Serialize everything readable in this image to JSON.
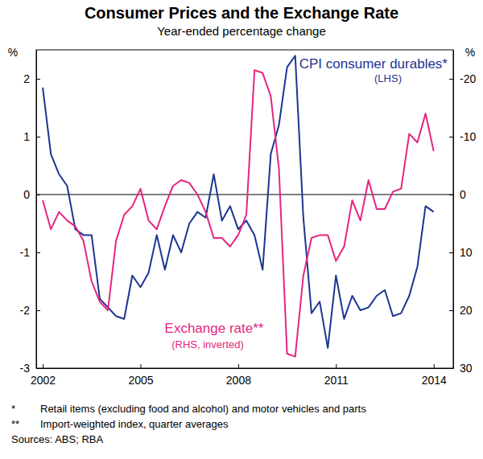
{
  "chart_data": {
    "type": "line",
    "title": "Consumer Prices and the Exchange Rate",
    "subtitle": "Year-ended percentage change",
    "ylabel": "%",
    "y2label": "%",
    "x": [
      2002,
      2002.25,
      2002.5,
      2002.75,
      2003,
      2003.25,
      2003.5,
      2003.75,
      2004,
      2004.25,
      2004.5,
      2004.75,
      2005,
      2005.25,
      2005.5,
      2005.75,
      2006,
      2006.25,
      2006.5,
      2006.75,
      2007,
      2007.25,
      2007.5,
      2007.75,
      2008,
      2008.25,
      2008.5,
      2008.75,
      2009,
      2009.25,
      2009.5,
      2009.75,
      2010,
      2010.25,
      2010.5,
      2010.75,
      2011,
      2011.25,
      2011.5,
      2011.75,
      2012,
      2012.25,
      2012.5,
      2012.75,
      2013,
      2013.25,
      2013.5,
      2013.75,
      2014
    ],
    "xlim": [
      2001.8,
      2014.6
    ],
    "xticks": [
      2002,
      2005,
      2008,
      2011,
      2014
    ],
    "ylim": [
      -3,
      2.5
    ],
    "yticks": [
      -3,
      -2,
      -1,
      0,
      1,
      2
    ],
    "y2lim": [
      30,
      -25
    ],
    "y2ticks": [
      30,
      20,
      10,
      0,
      -10,
      -20
    ],
    "grid": false,
    "series": [
      {
        "name": "CPI consumer durables*",
        "color": "#1c3591",
        "axis": "y",
        "values": [
          1.85,
          0.7,
          0.35,
          0.15,
          -0.6,
          -0.7,
          -0.7,
          -1.8,
          -1.95,
          -2.1,
          -2.15,
          -1.4,
          -1.6,
          -1.35,
          -0.7,
          -1.3,
          -0.7,
          -1.0,
          -0.5,
          -0.3,
          -0.4,
          0.35,
          -0.45,
          -0.2,
          -0.6,
          -0.45,
          -0.7,
          -1.3,
          0.7,
          1.2,
          2.2,
          2.4,
          -0.4,
          -2.05,
          -1.85,
          -2.65,
          -1.4,
          -2.15,
          -1.75,
          -2.0,
          -1.95,
          -1.75,
          -1.65,
          -2.1,
          -2.05,
          -1.75,
          -1.25,
          -0.2,
          -0.3
        ]
      },
      {
        "name": "Exchange rate**",
        "color": "#e5257f",
        "axis": "y2",
        "values": [
          1,
          6,
          3,
          4.5,
          5.5,
          8,
          15,
          18.5,
          20,
          8,
          3.5,
          2,
          -1,
          4.5,
          6,
          2,
          -1.5,
          -2.5,
          -2,
          0,
          3,
          7.5,
          7.5,
          9,
          7,
          3.5,
          -21.5,
          -21,
          -17,
          -4.5,
          27.5,
          28,
          14,
          7.5,
          7,
          7,
          11.5,
          9,
          1,
          4.5,
          -2.5,
          2.5,
          2.5,
          -0.5,
          -1,
          -10.5,
          -9,
          -14,
          -7.5
        ]
      }
    ],
    "annotations": [
      "(LHS)",
      "(RHS, inverted)"
    ],
    "notes": [
      {
        "symbol": "*",
        "text": "Retail items (excluding food and alcohol) and motor vehicles and parts"
      },
      {
        "symbol": "**",
        "text": "Import-weighted index, quarter averages"
      }
    ],
    "source": "Sources: ABS; RBA"
  }
}
